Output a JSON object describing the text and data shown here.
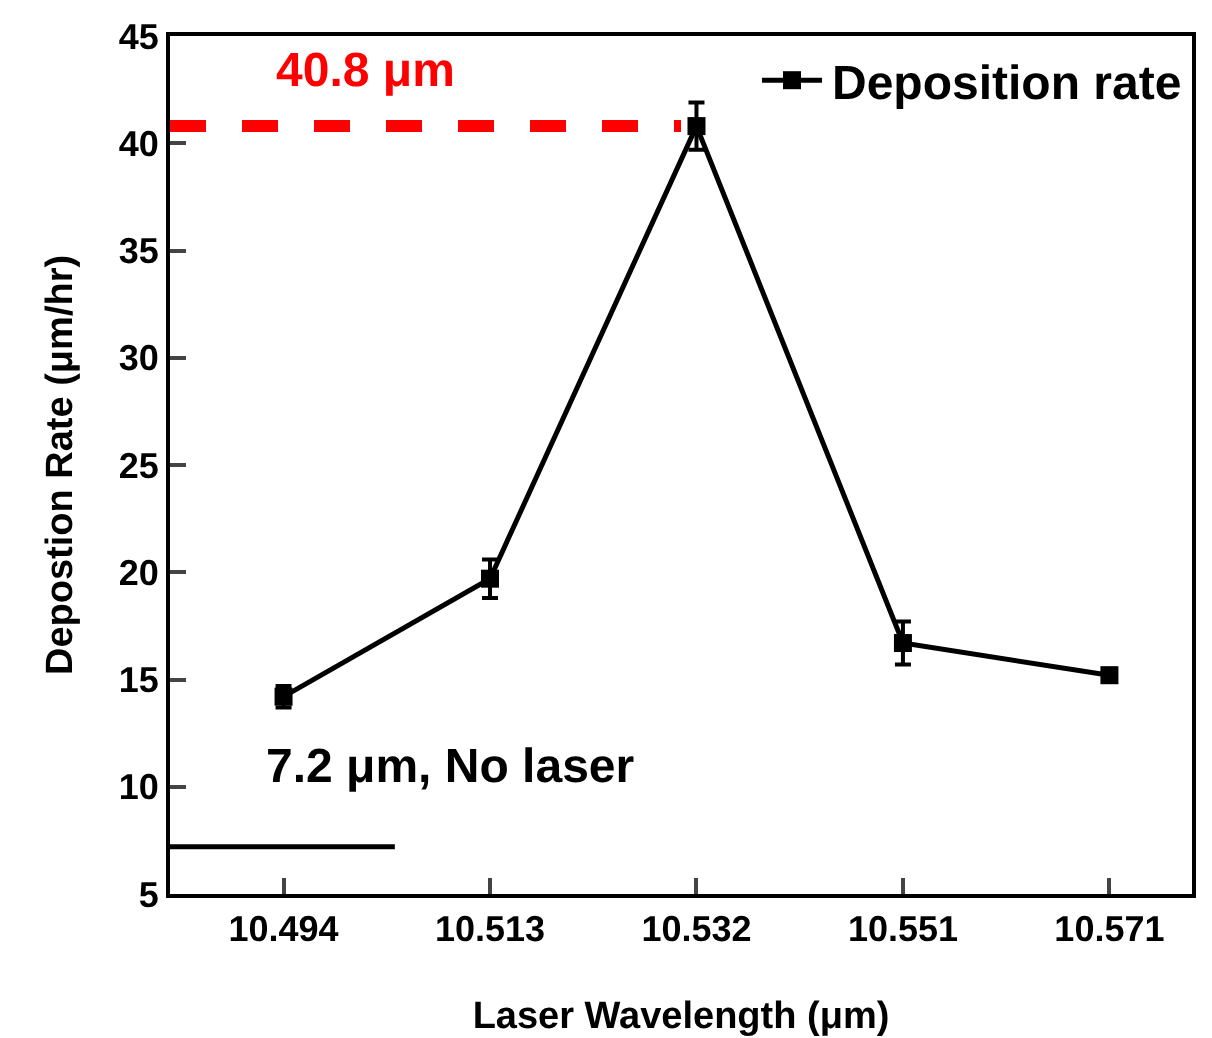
{
  "chart_data": {
    "type": "line",
    "xlabel": "Laser Wavelength (μm)",
    "ylabel": "Depostion Rate (μm/hr)",
    "categories": [
      "10.494",
      "10.513",
      "10.532",
      "10.551",
      "10.571"
    ],
    "series": [
      {
        "name": "Deposition rate",
        "color": "#000000",
        "values": [
          14.2,
          19.7,
          40.8,
          16.7,
          15.2
        ],
        "errors": [
          0.5,
          0.9,
          1.1,
          1.0,
          0.3
        ]
      }
    ],
    "ylim": [
      5,
      45
    ],
    "yticks": [
      5,
      10,
      15,
      20,
      25,
      30,
      35,
      40,
      45
    ],
    "marker": "square",
    "line_style": "solid",
    "legend": "top right",
    "grid": false,
    "ref_lines": [
      {
        "axis": "y",
        "value": 40.8,
        "label": "40.8 μm",
        "color": "#ff0000",
        "line_style": "dashed"
      },
      {
        "axis": "y",
        "value": 7.2,
        "label": "7.2 μm, No laser",
        "color": "#000000",
        "line_style": "solid"
      }
    ]
  }
}
